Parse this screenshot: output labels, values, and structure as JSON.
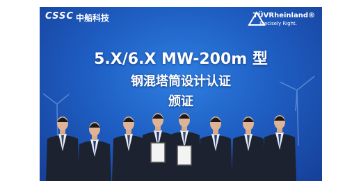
{
  "header": {
    "left_logo": {
      "mark": "CSSC",
      "name": "中船科技"
    },
    "right_logo": {
      "name": "TÜVRheinland®",
      "tagline": "Precisely Right."
    }
  },
  "banner": {
    "lines": [
      "5.X/6.X MW-200m 型",
      "钢混塔筒设计认证",
      "颁证"
    ]
  }
}
